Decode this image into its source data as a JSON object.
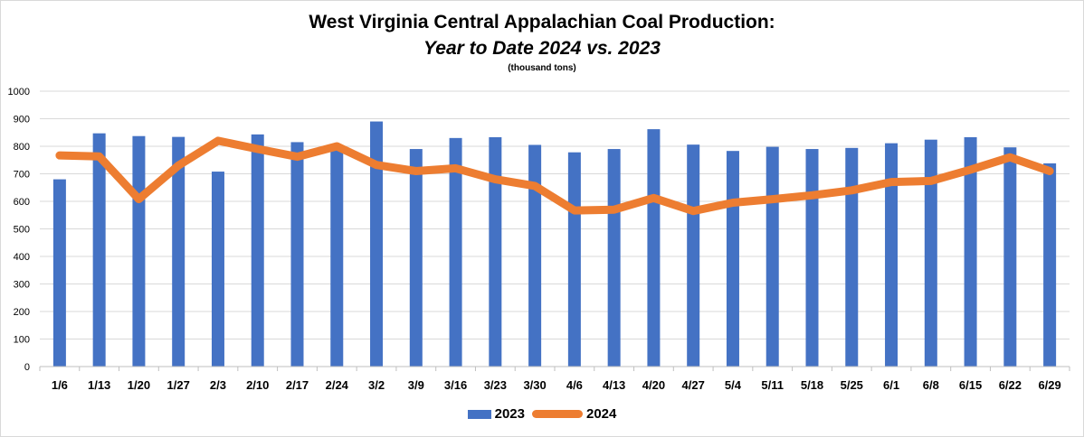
{
  "chart_data": {
    "type": "bar",
    "title": "West Virginia Central Appalachian Coal Production:",
    "subtitle": "Year to Date 2024 vs. 2023",
    "units_note": "(thousand tons)",
    "categories": [
      "1/6",
      "1/13",
      "1/20",
      "1/27",
      "2/3",
      "2/10",
      "2/17",
      "2/24",
      "3/2",
      "3/9",
      "3/16",
      "3/23",
      "3/30",
      "4/6",
      "4/13",
      "4/20",
      "4/27",
      "5/4",
      "5/11",
      "5/18",
      "5/25",
      "6/1",
      "6/8",
      "6/15",
      "6/22",
      "6/29"
    ],
    "ylim": [
      0,
      1000
    ],
    "yticks": [
      0,
      100,
      200,
      300,
      400,
      500,
      600,
      700,
      800,
      900,
      1000
    ],
    "grid": true,
    "legend_position": "bottom",
    "series": [
      {
        "name": "2023",
        "kind": "bar",
        "color": "#4472C4",
        "values": [
          680,
          847,
          837,
          834,
          708,
          843,
          815,
          797,
          890,
          790,
          830,
          833,
          805,
          778,
          790,
          862,
          806,
          783,
          798,
          790,
          794,
          811,
          824,
          833,
          796,
          738
        ]
      },
      {
        "name": "2024",
        "kind": "line",
        "color": "#ED7D31",
        "values": [
          767,
          763,
          608,
          730,
          820,
          790,
          762,
          800,
          732,
          710,
          720,
          680,
          656,
          567,
          570,
          612,
          565,
          595,
          608,
          622,
          640,
          670,
          674,
          715,
          760,
          710
        ]
      }
    ]
  }
}
